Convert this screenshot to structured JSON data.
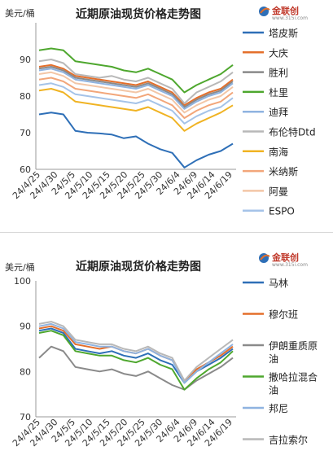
{
  "chart_data": [
    {
      "type": "line",
      "title": "近期原油现货价格走势图",
      "unit": "美元/桶",
      "ylim": [
        60,
        100
      ],
      "yticks": [
        60,
        70,
        80,
        90
      ],
      "xlabels": [
        "24/4/25",
        "24/4/30",
        "24/5/5",
        "24/5/10",
        "24/5/15",
        "24/5/20",
        "24/5/25",
        "24/5/30",
        "24/6/4",
        "24/6/9",
        "24/6/14",
        "24/6/19"
      ],
      "grid": false,
      "legend_position": "right",
      "series": [
        {
          "name": "塔皮斯",
          "color": "#2e6fb7",
          "values": [
            75.0,
            75.5,
            75.0,
            70.5,
            70.0,
            69.8,
            69.5,
            68.5,
            69.0,
            67.0,
            65.5,
            64.5,
            60.5,
            62.5,
            64.0,
            65.0,
            67.0
          ]
        },
        {
          "name": "大庆",
          "color": "#e46f2b",
          "values": [
            88.0,
            88.5,
            87.5,
            85.5,
            85.0,
            84.5,
            84.0,
            83.5,
            83.0,
            84.0,
            82.5,
            81.0,
            77.5,
            79.5,
            81.0,
            82.0,
            84.5
          ]
        },
        {
          "name": "胜利",
          "color": "#8a8a8a",
          "values": [
            87.5,
            88.0,
            87.0,
            85.0,
            84.5,
            84.0,
            83.5,
            83.0,
            82.5,
            83.5,
            82.0,
            80.5,
            77.0,
            79.0,
            80.5,
            81.5,
            84.0
          ]
        },
        {
          "name": "杜里",
          "color": "#4ea72e",
          "values": [
            92.5,
            93.0,
            92.5,
            89.5,
            89.0,
            88.5,
            88.0,
            87.0,
            86.5,
            87.5,
            86.0,
            84.5,
            81.0,
            83.0,
            84.5,
            86.0,
            88.5
          ]
        },
        {
          "name": "迪拜",
          "color": "#8fb3e0",
          "values": [
            87.0,
            87.5,
            86.5,
            84.5,
            84.0,
            83.5,
            83.0,
            82.5,
            82.0,
            83.0,
            81.5,
            80.0,
            76.5,
            78.5,
            80.0,
            81.0,
            83.5
          ]
        },
        {
          "name": "布伦特Dtd",
          "color": "#b8b8b8",
          "values": [
            89.5,
            90.0,
            89.0,
            86.0,
            85.5,
            85.0,
            85.5,
            84.5,
            84.0,
            85.0,
            83.5,
            82.0,
            78.0,
            81.0,
            82.5,
            84.0,
            86.5
          ]
        },
        {
          "name": "南海",
          "color": "#f0b323",
          "values": [
            81.5,
            82.0,
            81.0,
            78.5,
            78.0,
            77.5,
            77.0,
            76.5,
            76.0,
            77.0,
            75.5,
            74.0,
            70.5,
            72.5,
            74.0,
            75.5,
            77.5
          ]
        },
        {
          "name": "米纳斯",
          "color": "#f2a67a",
          "values": [
            84.5,
            85.0,
            84.0,
            82.0,
            81.5,
            81.0,
            80.5,
            80.0,
            79.5,
            80.5,
            79.0,
            77.5,
            74.0,
            76.0,
            77.5,
            78.5,
            81.0
          ]
        },
        {
          "name": "阿曼",
          "color": "#f3c6a6",
          "values": [
            86.0,
            86.5,
            85.5,
            83.5,
            83.0,
            82.5,
            82.0,
            81.5,
            81.0,
            82.0,
            80.5,
            79.0,
            75.5,
            77.5,
            79.0,
            80.0,
            82.5
          ]
        },
        {
          "name": "ESPO",
          "color": "#a5c3e8",
          "values": [
            83.0,
            83.5,
            82.5,
            80.5,
            80.0,
            79.5,
            79.0,
            78.5,
            78.0,
            79.0,
            77.5,
            76.0,
            72.5,
            74.5,
            76.0,
            77.0,
            79.5
          ]
        }
      ]
    },
    {
      "type": "line",
      "title": "近期原油现货价格走势图",
      "unit": "美元/桶",
      "ylim": [
        70,
        100
      ],
      "yticks": [
        70,
        80,
        90,
        100
      ],
      "xlabels": [
        "24/4/25",
        "24/4/30",
        "24/5/5",
        "24/5/10",
        "24/5/15",
        "24/5/20",
        "24/5/25",
        "24/5/30",
        "24/6/4",
        "24/6/9",
        "24/6/14",
        "24/6/19"
      ],
      "grid": false,
      "legend_position": "right",
      "series": [
        {
          "name": "马林",
          "color": "#2e6fb7",
          "values": [
            89.0,
            89.5,
            88.5,
            85.0,
            84.5,
            84.0,
            84.5,
            83.5,
            83.0,
            84.0,
            82.5,
            81.5,
            77.5,
            80.0,
            81.5,
            83.0,
            85.0
          ]
        },
        {
          "name": "穆尔班",
          "color": "#e46f2b",
          "values": [
            89.5,
            90.0,
            89.0,
            86.0,
            85.5,
            85.0,
            85.5,
            84.5,
            84.0,
            85.0,
            83.5,
            82.5,
            78.0,
            80.5,
            82.0,
            83.5,
            85.5
          ]
        },
        {
          "name": "伊朗重质原油",
          "color": "#8a8a8a",
          "values": [
            83.0,
            85.5,
            84.5,
            81.0,
            80.5,
            80.0,
            80.5,
            79.5,
            79.0,
            80.0,
            78.5,
            77.0,
            76.0,
            78.0,
            79.5,
            81.0,
            83.0
          ]
        },
        {
          "name": "撒哈拉混合油",
          "color": "#4ea72e",
          "values": [
            88.5,
            89.0,
            88.0,
            84.5,
            84.0,
            83.5,
            83.5,
            82.5,
            82.0,
            83.0,
            81.5,
            80.5,
            76.0,
            78.5,
            80.5,
            82.0,
            84.5
          ]
        },
        {
          "name": "邦尼",
          "color": "#8fb3e0",
          "values": [
            90.0,
            90.5,
            89.5,
            86.5,
            86.0,
            85.5,
            85.5,
            84.5,
            84.0,
            85.0,
            83.5,
            82.5,
            77.5,
            80.0,
            82.0,
            84.0,
            86.0
          ]
        },
        {
          "name": "吉拉索尔",
          "color": "#b8b8b8",
          "values": [
            90.5,
            91.0,
            90.0,
            87.0,
            86.5,
            86.0,
            86.0,
            85.0,
            84.5,
            85.5,
            84.0,
            83.0,
            78.0,
            81.0,
            83.0,
            85.0,
            87.0
          ]
        }
      ]
    }
  ],
  "logo": {
    "name": "金联创",
    "sub": "www.315i.com"
  }
}
